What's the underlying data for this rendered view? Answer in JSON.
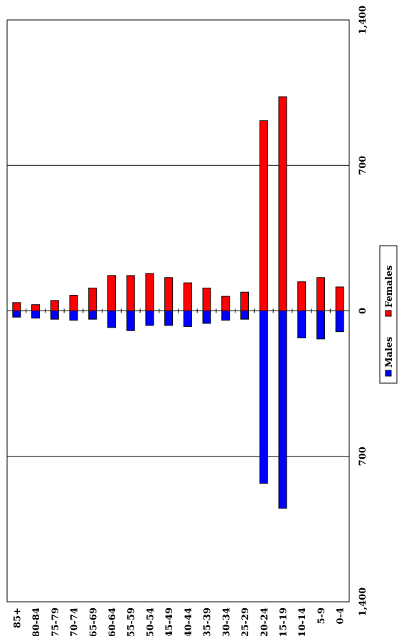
{
  "chart_data": {
    "type": "bar",
    "orientation": "population-pyramid",
    "categories": [
      "85+",
      "80-84",
      "75-79",
      "70-74",
      "65-69",
      "60-64",
      "55-59",
      "50-54",
      "45-49",
      "40-44",
      "35-39",
      "30-34",
      "25-29",
      "20-24",
      "15-19",
      "10-14",
      "5-9",
      "0-4"
    ],
    "series": [
      {
        "name": "Males",
        "color": "#0000ff",
        "values": [
          30,
          35,
          40,
          45,
          40,
          80,
          95,
          70,
          70,
          75,
          60,
          45,
          40,
          830,
          950,
          130,
          135,
          100
        ]
      },
      {
        "name": "Females",
        "color": "#ff0000",
        "values": [
          40,
          30,
          50,
          75,
          110,
          170,
          170,
          180,
          160,
          135,
          110,
          70,
          90,
          915,
          1030,
          140,
          160,
          115
        ]
      }
    ],
    "axis": {
      "tick_labels_males_side": [
        "1,400",
        "700"
      ],
      "tick_labels_center": "0",
      "tick_labels_females_side": [
        "700",
        "1,400"
      ],
      "max": 1400,
      "gridlines": [
        700
      ]
    },
    "legend": {
      "position": "right",
      "entries": [
        "Males",
        "Females"
      ]
    }
  }
}
